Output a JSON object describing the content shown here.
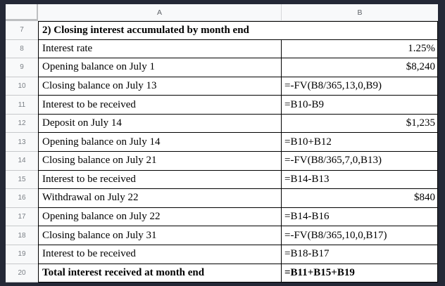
{
  "app": {
    "type": "spreadsheet-grid"
  },
  "colors": {
    "frame": "#242836",
    "header-bg": "#f8f9fa",
    "header-text": "#5f6368",
    "rownum-text": "#7b8086",
    "cell-border": "#000000",
    "cell-bg": "#ffffff",
    "cell-text": "#000000"
  },
  "sheet": {
    "column_headers": [
      "A",
      "B"
    ],
    "rows": [
      {
        "num": "7",
        "a": "2) Closing interest accumulated by month end",
        "b": "",
        "bold": true,
        "merged": true
      },
      {
        "num": "8",
        "a": "Interest rate",
        "b": "1.25%",
        "b_align": "right"
      },
      {
        "num": "9",
        "a": "Opening balance on July 1",
        "b": "$8,240",
        "b_align": "right"
      },
      {
        "num": "10",
        "a": "Closing balance on July 13",
        "b": "=-FV(B8/365,13,0,B9)",
        "b_align": "left"
      },
      {
        "num": "11",
        "a": "Interest to be received",
        "b": "=B10-B9",
        "b_align": "left"
      },
      {
        "num": "12",
        "a": "Deposit on July 14",
        "b": "$1,235",
        "b_align": "right"
      },
      {
        "num": "13",
        "a": "Opening balance on July 14",
        "b": "=B10+B12",
        "b_align": "left"
      },
      {
        "num": "14",
        "a": "Closing balance on July 21",
        "b": "=-FV(B8/365,7,0,B13)",
        "b_align": "left"
      },
      {
        "num": "15",
        "a": "Interest to be received",
        "b": "=B14-B13",
        "b_align": "left"
      },
      {
        "num": "16",
        "a": "Withdrawal on July 22",
        "b": "$840",
        "b_align": "right"
      },
      {
        "num": "17",
        "a": "Opening balance on July 22",
        "b": "=B14-B16",
        "b_align": "left"
      },
      {
        "num": "18",
        "a": "Closing balance on July 31",
        "b": "=-FV(B8/365,10,0,B17)",
        "b_align": "left"
      },
      {
        "num": "19",
        "a": "Interest to be received",
        "b": "=B18-B17",
        "b_align": "left"
      },
      {
        "num": "20",
        "a": "Total interest received at month end",
        "b": "=B11+B15+B19",
        "b_align": "left",
        "bold": true
      }
    ]
  }
}
